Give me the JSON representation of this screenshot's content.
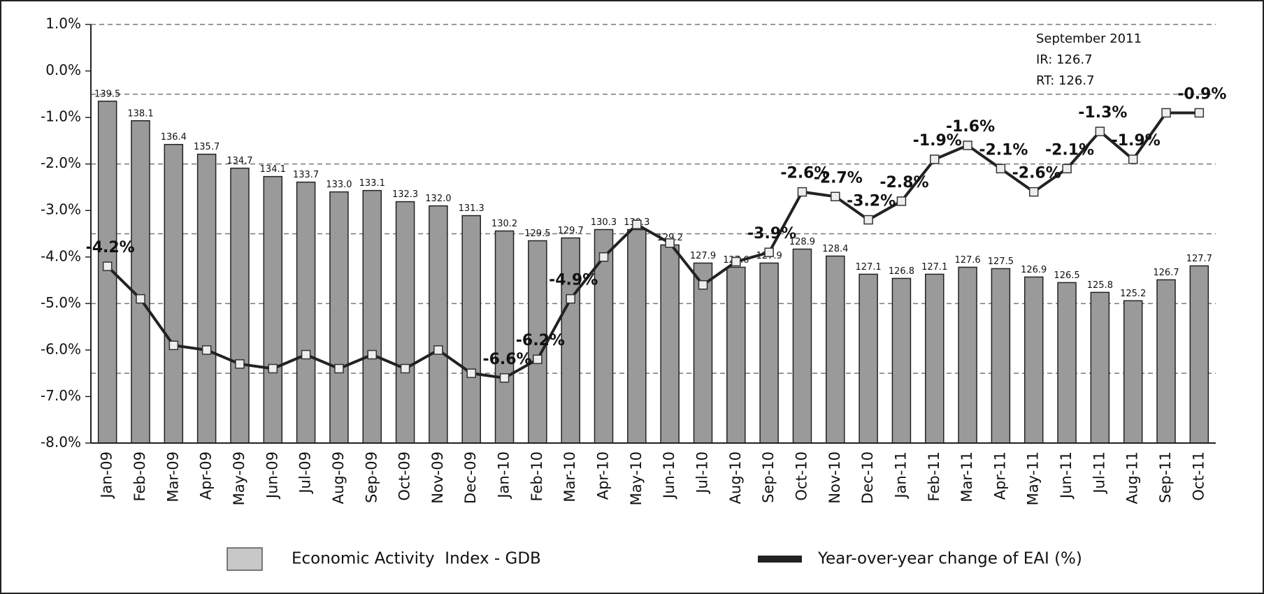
{
  "chart_data": {
    "type": "combo",
    "categories": [
      "Jan-09",
      "Feb-09",
      "Mar-09",
      "Apr-09",
      "May-09",
      "Jun-09",
      "Jul-09",
      "Aug-09",
      "Sep-09",
      "Oct-09",
      "Nov-09",
      "Dec-09",
      "Jan-10",
      "Feb-10",
      "Mar-10",
      "Apr-10",
      "May-10",
      "Jun-10",
      "Jul-10",
      "Aug-10",
      "Sep-10",
      "Oct-10",
      "Nov-10",
      "Dec-10",
      "Jan-11",
      "Feb-11",
      "Mar-11",
      "Apr-11",
      "May-11",
      "Jun-11",
      "Jul-11",
      "Aug-11",
      "Sep-11",
      "Oct-11"
    ],
    "series": [
      {
        "name": "Economic Activity  Index - GDB",
        "type": "bar",
        "axis": "y2",
        "color": "#9a9a9a",
        "values": [
          139.5,
          138.1,
          136.4,
          135.7,
          134.7,
          134.1,
          133.7,
          133.0,
          133.1,
          132.3,
          132.0,
          131.3,
          130.2,
          129.5,
          129.7,
          130.3,
          130.3,
          129.2,
          127.9,
          127.6,
          127.9,
          128.9,
          128.4,
          127.1,
          126.8,
          127.1,
          127.6,
          127.5,
          126.9,
          126.5,
          125.8,
          125.2,
          126.7,
          127.7
        ],
        "value_labels": [
          "139.5",
          "138.1",
          "136.4",
          "135.7",
          "134.7",
          "134.1",
          "133.7",
          "133.0",
          "133.1",
          "132.3",
          "132.0",
          "131.3",
          "130.2",
          "129.5",
          "129.7",
          "130.3",
          "130.3",
          "129.2",
          "127.9",
          "127.6",
          "127.9",
          "128.9",
          "128.4",
          "127.1",
          "126.8",
          "127.1",
          "127.6",
          "127.5",
          "126.9",
          "126.5",
          "125.8",
          "125.2",
          "126.7",
          "127.7"
        ]
      },
      {
        "name": "Year-over-year change of EAI (%)",
        "type": "line",
        "color": "#222222",
        "values": [
          -4.2,
          -4.9,
          -5.9,
          -6.0,
          -6.3,
          -6.4,
          -6.1,
          -6.4,
          -6.1,
          -6.4,
          -6.0,
          -6.5,
          -6.6,
          -6.2,
          -4.9,
          -4.0,
          -3.3,
          -3.7,
          -4.6,
          -4.1,
          -3.9,
          -2.6,
          -2.7,
          -3.2,
          -2.8,
          -1.9,
          -1.6,
          -2.1,
          -2.6,
          -2.1,
          -1.3,
          -1.9,
          -0.9,
          -0.9
        ],
        "value_labels": [
          "-4.2%",
          null,
          null,
          null,
          null,
          null,
          null,
          null,
          null,
          null,
          null,
          null,
          "-6.6%",
          "-6.2%",
          "-4.9%",
          null,
          null,
          null,
          null,
          null,
          "-3.9%",
          "-2.6%",
          "-2.7%",
          "-3.2%",
          "-2.8%",
          "-1.9%",
          "-1.6%",
          "-2.1%",
          "-2.6%",
          "-2.1%",
          "-1.3%",
          "-1.9%",
          null,
          "-0.9%"
        ]
      }
    ],
    "ylim": [
      -8,
      1
    ],
    "yticks": [
      {
        "value": 1,
        "label": "1.0%"
      },
      {
        "value": 0,
        "label": "0.0%"
      },
      {
        "value": -1,
        "label": "-1.0%"
      },
      {
        "value": -2,
        "label": "-2.0%"
      },
      {
        "value": -3,
        "label": "-3.0%"
      },
      {
        "value": -4,
        "label": "-4.0%"
      },
      {
        "value": -5,
        "label": "-5.0%"
      },
      {
        "value": -6,
        "label": "-6.0%"
      },
      {
        "value": -7,
        "label": "-7.0%"
      },
      {
        "value": -8,
        "label": "-8.0%"
      }
    ],
    "y2lim": [
      115,
      145
    ],
    "y2ticks": [
      115,
      120,
      125,
      130,
      135,
      140,
      145
    ],
    "grid": true,
    "annotations": [
      "September 2011",
      "IR: 126.7",
      "RT: 126.7"
    ]
  }
}
